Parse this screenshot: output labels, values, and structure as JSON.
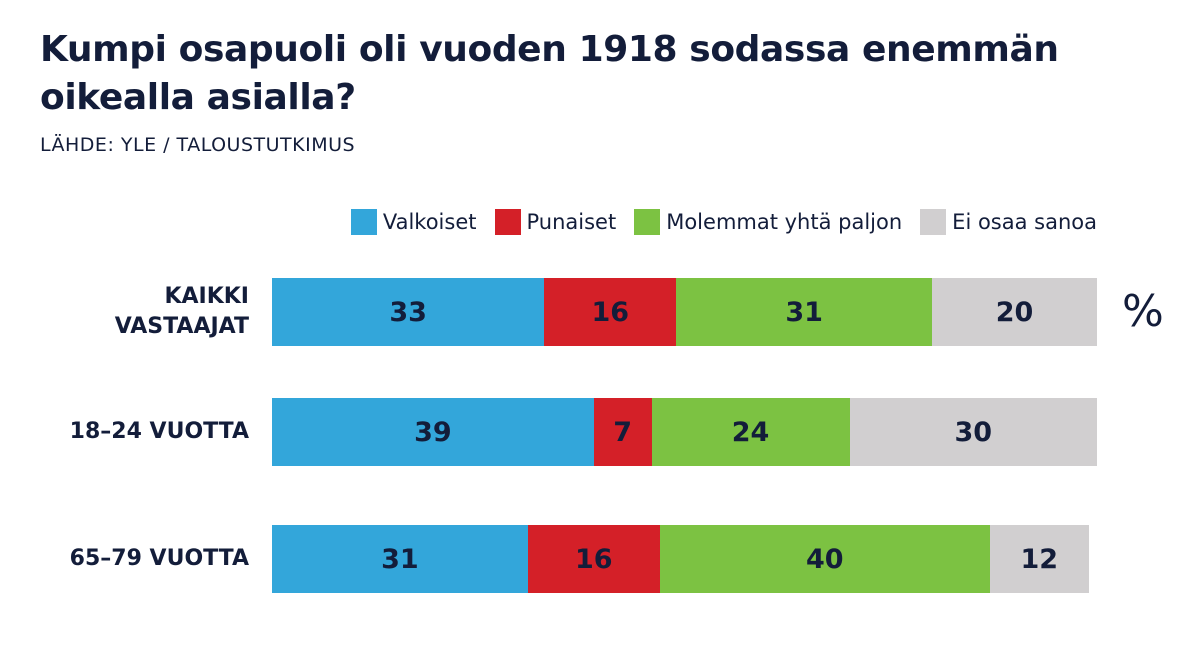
{
  "title": "Kumpi osapuoli oli vuoden 1918 sodassa enemmän oikealla asialla?",
  "source": "LÄHDE: YLE / TALOUSTUTKIMUS",
  "unit": "%",
  "colors": {
    "valkoiset": "#33a6da",
    "punaiset": "#d42028",
    "molemmat": "#7cc242",
    "ei_osaa": "#d1cfd0",
    "text": "#131d3a"
  },
  "chart_data": {
    "type": "bar",
    "orientation": "horizontal",
    "stacked": true,
    "title": "Kumpi osapuoli oli vuoden 1918 sodassa enemmän oikealla asialla?",
    "xlabel": "",
    "ylabel": "",
    "unit": "%",
    "xlim": [
      0,
      100
    ],
    "legend_position": "top-right",
    "categories": [
      "KAIKKI\nVASTAAJAT",
      "18–24 VUOTTA",
      "65–79 VUOTTA"
    ],
    "series": [
      {
        "name": "Valkoiset",
        "color_key": "valkoiset",
        "values": [
          33,
          39,
          31
        ]
      },
      {
        "name": "Punaiset",
        "color_key": "punaiset",
        "values": [
          16,
          7,
          16
        ]
      },
      {
        "name": "Molemmat yhtä paljon",
        "color_key": "molemmat",
        "values": [
          31,
          24,
          40
        ]
      },
      {
        "name": "Ei osaa sanoa",
        "color_key": "ei_osaa",
        "values": [
          20,
          30,
          12
        ]
      }
    ]
  }
}
